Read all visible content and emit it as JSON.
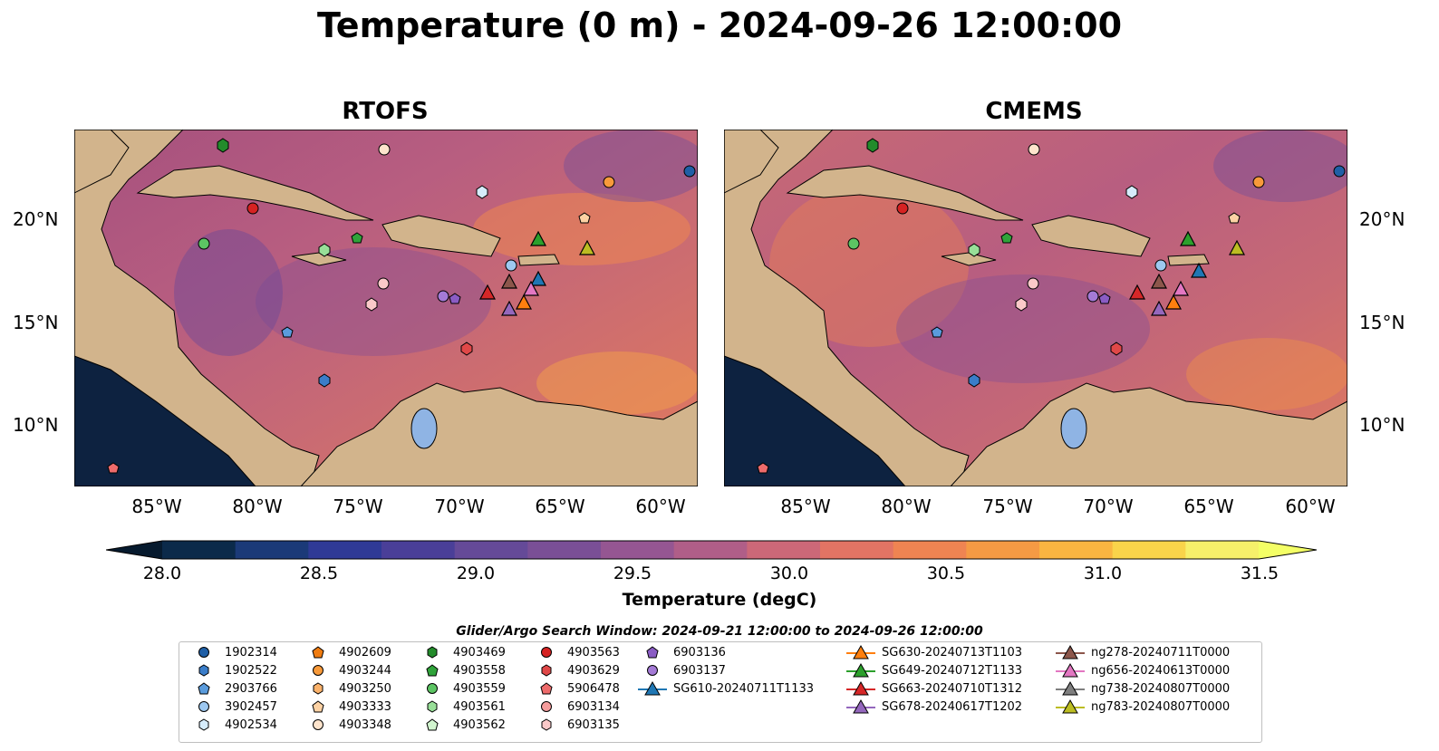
{
  "title": "Temperature (0 m) - 2024-09-26 12:00:00",
  "panels": [
    {
      "title": "RTOFS"
    },
    {
      "title": "CMEMS"
    }
  ],
  "lat_ticks": [
    "20°N",
    "15°N",
    "10°N"
  ],
  "lon_ticks": [
    "85°W",
    "80°W",
    "75°W",
    "70°W",
    "65°W",
    "60°W"
  ],
  "colorbar": {
    "label": "Temperature (degC)",
    "ticks": [
      "28.0",
      "28.5",
      "29.0",
      "29.5",
      "30.0",
      "30.5",
      "31.0",
      "31.5"
    ],
    "colors": [
      "#0b2a4a",
      "#1b3a78",
      "#2f3a96",
      "#4a3f98",
      "#654a98",
      "#7a4f96",
      "#955692",
      "#b05e88",
      "#cc6878",
      "#e27464",
      "#ef8452",
      "#f59a44",
      "#f9b541",
      "#f9d44a",
      "#f6f06a"
    ]
  },
  "search_window": "Glider/Argo Search Window: 2024-09-21 12:00:00 to 2024-09-26 12:00:00",
  "legend": [
    [
      {
        "label": "1902314",
        "shape": "circle",
        "color": "#1f5fa6"
      },
      {
        "label": "1902522",
        "shape": "hexagon",
        "color": "#3a7dc9"
      },
      {
        "label": "2903766",
        "shape": "pentagon",
        "color": "#5a9bdc"
      },
      {
        "label": "3902457",
        "shape": "circle",
        "color": "#9dc8f0"
      },
      {
        "label": "4902534",
        "shape": "hexagon",
        "color": "#d6ecfb"
      }
    ],
    [
      {
        "label": "4902609",
        "shape": "pentagon",
        "color": "#f07c10"
      },
      {
        "label": "4903244",
        "shape": "circle",
        "color": "#f89a3a"
      },
      {
        "label": "4903250",
        "shape": "hexagon",
        "color": "#fbb26b"
      },
      {
        "label": "4903333",
        "shape": "pentagon",
        "color": "#fdd2a4"
      },
      {
        "label": "4903348",
        "shape": "circle",
        "color": "#fde4cc"
      }
    ],
    [
      {
        "label": "4903469",
        "shape": "hexagon",
        "color": "#238b2b"
      },
      {
        "label": "4903558",
        "shape": "pentagon",
        "color": "#2fa33a"
      },
      {
        "label": "4903559",
        "shape": "circle",
        "color": "#5cc463"
      },
      {
        "label": "4903561",
        "shape": "hexagon",
        "color": "#98df98"
      },
      {
        "label": "4903562",
        "shape": "pentagon",
        "color": "#d2f5cf"
      }
    ],
    [
      {
        "label": "4903563",
        "shape": "circle",
        "color": "#d62222"
      },
      {
        "label": "4903629",
        "shape": "hexagon",
        "color": "#e04848"
      },
      {
        "label": "5906478",
        "shape": "pentagon",
        "color": "#ee6b6b"
      },
      {
        "label": "6903134",
        "shape": "circle",
        "color": "#f59c9c"
      },
      {
        "label": "6903135",
        "shape": "hexagon",
        "color": "#fbc9c9"
      }
    ],
    [
      {
        "label": "6903136",
        "shape": "pentagon",
        "color": "#8a5cc4"
      },
      {
        "label": "6903137",
        "shape": "circle",
        "color": "#a47ad6"
      },
      {
        "label": "SG610-20240711T1133",
        "shape": "triangle-line",
        "color": "#1f77b4"
      }
    ],
    [
      {
        "label": "SG630-20240713T1103",
        "shape": "triangle-line",
        "color": "#ff7f0e"
      },
      {
        "label": "SG649-20240712T1133",
        "shape": "triangle-line",
        "color": "#2ca02c"
      },
      {
        "label": "SG663-20240710T1312",
        "shape": "triangle-line",
        "color": "#d62728"
      },
      {
        "label": "SG678-20240617T1202",
        "shape": "triangle-line",
        "color": "#9467bd"
      }
    ],
    [
      {
        "label": "ng278-20240711T0000",
        "shape": "triangle-line",
        "color": "#8c564b"
      },
      {
        "label": "ng656-20240613T0000",
        "shape": "triangle-line",
        "color": "#e377c2"
      },
      {
        "label": "ng738-20240807T0000",
        "shape": "triangle-line",
        "color": "#7f7f7f"
      },
      {
        "label": "ng783-20240807T0000",
        "shape": "triangle-line",
        "color": "#bcbd22"
      }
    ]
  ],
  "colors": {
    "land": "#d2b48c",
    "lake": "#8fb4e4",
    "river": "#a9c2d9",
    "ocean_base": "#c3607c",
    "warm": "#ef8a50",
    "deep_pacific": "#0d2240"
  }
}
